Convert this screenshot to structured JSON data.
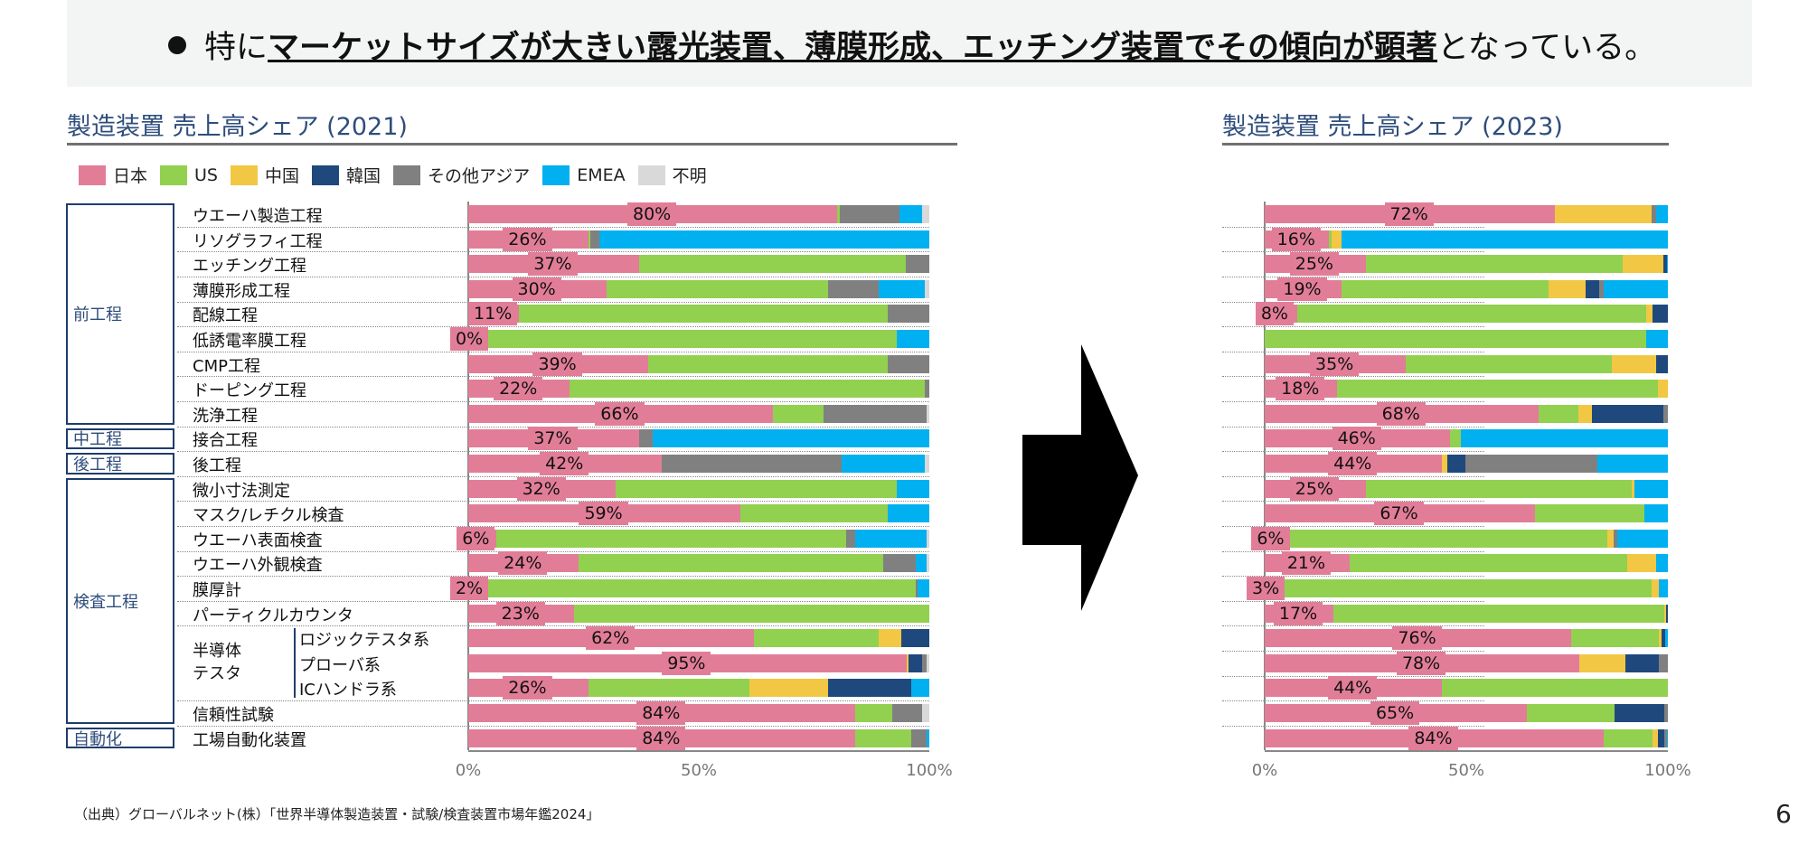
{
  "header": {
    "pre": "特に",
    "emphasis": "マーケットサイズが大きい露光装置、薄膜形成、エッチング装置でその傾向が顕著",
    "post": "となっている。"
  },
  "footer": {
    "source": "（出典）グローバルネット(株）「世界半導体製造装置・試験/検査装置市場年鑑2024」",
    "page_number": "6"
  },
  "colors": {
    "日本": "#e27d98",
    "US": "#92d050",
    "中国": "#f2c744",
    "韓国": "#1f497d",
    "その他アジア": "#808080",
    "EMEA": "#00b0f0",
    "不明": "#d9d9d9"
  },
  "groups": [
    {
      "label": "前工程",
      "rows": [
        0,
        8
      ]
    },
    {
      "label": "中工程",
      "rows": [
        9,
        9
      ]
    },
    {
      "label": "後工程",
      "rows": [
        10,
        10
      ]
    },
    {
      "label": "検査工程",
      "rows": [
        11,
        20
      ]
    },
    {
      "label": "自動化",
      "rows": [
        21,
        21
      ]
    }
  ],
  "subgroup_label": "半導体\nテスタ",
  "chart_data": [
    {
      "type": "bar",
      "stacked": true,
      "orientation": "horizontal",
      "title": "製造装置 売上高シェア (2021)",
      "legend": [
        "日本",
        "US",
        "中国",
        "韓国",
        "その他アジア",
        "EMEA",
        "不明"
      ],
      "legend_position": "top-left",
      "xlim": [
        0,
        100
      ],
      "xticks": [
        "0%",
        "50%",
        "100%"
      ],
      "categories": [
        "ウエーハ製造工程",
        "リソグラフィ工程",
        "エッチング工程",
        "薄膜形成工程",
        "配線工程",
        "低誘電率膜工程",
        "CMP工程",
        "ドーピング工程",
        "洗浄工程",
        "接合工程",
        "後工程",
        "微小寸法測定",
        "マスク/レチクル検査",
        "ウエーハ表面検査",
        "ウエーハ外観検査",
        "膜厚計",
        "パーティクルカウンタ",
        "ロジックテスタ系",
        "プローバ系",
        "ICハンドラ系",
        "信頼性試験",
        "工場自動化装置"
      ],
      "data_labels": [
        "80%",
        "26%",
        "37%",
        "30%",
        "11%",
        "0%",
        "39%",
        "22%",
        "66%",
        "37%",
        "42%",
        "32%",
        "59%",
        "6%",
        "24%",
        "2%",
        "23%",
        "62%",
        "95%",
        "26%",
        "84%",
        "84%"
      ],
      "values": [
        [
          80,
          0.5,
          0,
          0,
          13,
          5,
          1.5
        ],
        [
          26,
          0.5,
          0,
          0,
          2,
          71.5,
          0
        ],
        [
          37,
          58,
          0,
          0,
          5,
          0,
          0
        ],
        [
          30,
          48,
          0,
          0,
          11,
          10,
          1
        ],
        [
          11,
          80,
          0,
          0,
          9,
          0,
          0
        ],
        [
          0,
          93,
          0,
          0,
          0,
          7,
          0
        ],
        [
          39,
          52,
          0,
          0,
          9,
          0,
          0
        ],
        [
          22,
          77,
          0,
          0,
          1,
          0,
          0
        ],
        [
          66,
          11,
          0,
          0,
          22.5,
          0,
          0.5
        ],
        [
          37,
          0,
          0,
          0,
          3,
          60,
          0
        ],
        [
          42,
          0,
          0,
          0,
          39,
          18,
          1
        ],
        [
          32,
          61,
          0,
          0,
          0,
          7,
          0
        ],
        [
          59,
          32,
          0,
          0,
          0,
          9,
          0
        ],
        [
          6,
          76,
          0,
          0,
          2,
          15.5,
          0.5
        ],
        [
          24,
          66,
          0,
          0,
          7,
          2.5,
          0.5
        ],
        [
          2,
          95,
          0,
          0,
          0.5,
          2.5,
          0
        ],
        [
          23,
          77,
          0,
          0,
          0,
          0,
          0
        ],
        [
          62,
          27,
          5,
          6,
          0,
          0,
          0
        ],
        [
          95,
          0,
          0.5,
          3,
          1,
          0,
          0.5
        ],
        [
          26,
          35,
          17,
          18,
          0,
          4,
          0
        ],
        [
          84,
          8,
          0,
          0,
          6.5,
          0,
          1.5
        ],
        [
          84,
          12,
          0,
          0,
          3.5,
          0.5,
          0
        ]
      ]
    },
    {
      "type": "bar",
      "stacked": true,
      "orientation": "horizontal",
      "title": "製造装置 売上高シェア (2023)",
      "xlim": [
        0,
        100
      ],
      "xticks": [
        "0%",
        "50%",
        "100%"
      ],
      "data_labels": [
        "72%",
        "16%",
        "25%",
        "19%",
        "8%",
        "",
        "35%",
        "18%",
        "68%",
        "46%",
        "44%",
        "25%",
        "67%",
        "6%",
        "21%",
        "3%",
        "17%",
        "76%",
        "78%",
        "44%",
        "65%",
        "84%"
      ],
      "values": [
        [
          72,
          0,
          24,
          0,
          1,
          3,
          0
        ],
        [
          16,
          0.5,
          2.5,
          0,
          0,
          81,
          0
        ],
        [
          25,
          63.9,
          10,
          0.8,
          0,
          0.3,
          0
        ],
        [
          19,
          51.5,
          9,
          3.5,
          1,
          16,
          0
        ],
        [
          8,
          86.6,
          1.7,
          3.7,
          0,
          0,
          0
        ],
        [
          0,
          94.7,
          0,
          0,
          0,
          5.3,
          0
        ],
        [
          35,
          51,
          11,
          3,
          0,
          0,
          0
        ],
        [
          18,
          79.5,
          2.5,
          0,
          0,
          0,
          0
        ],
        [
          68,
          9.7,
          3.4,
          17.8,
          1.1,
          0,
          0
        ],
        [
          46,
          2.7,
          0,
          0,
          0,
          51.3,
          0
        ],
        [
          44,
          0,
          1.4,
          4.3,
          32.8,
          17.5,
          0
        ],
        [
          25,
          66,
          0.8,
          0,
          0,
          8.2,
          0
        ],
        [
          67,
          27.1,
          0,
          0,
          0,
          5.9,
          0
        ],
        [
          6,
          79,
          1.6,
          0,
          0.8,
          12.6,
          0
        ],
        [
          21,
          68.8,
          7.2,
          0,
          0,
          3,
          0
        ],
        [
          3,
          93,
          1.7,
          0,
          0,
          2.3,
          0
        ],
        [
          17,
          82.2,
          0.3,
          0.5,
          0,
          0,
          0
        ],
        [
          76,
          21.7,
          0.8,
          0.9,
          0,
          0.6,
          0
        ],
        [
          78,
          0,
          11.5,
          8.2,
          2.3,
          0,
          0
        ],
        [
          44,
          56,
          0,
          0,
          0,
          0,
          0
        ],
        [
          65,
          21.8,
          0,
          12.4,
          0.8,
          0,
          0
        ],
        [
          84,
          12.2,
          1.3,
          1.7,
          0.5,
          0.3,
          0
        ]
      ]
    }
  ]
}
